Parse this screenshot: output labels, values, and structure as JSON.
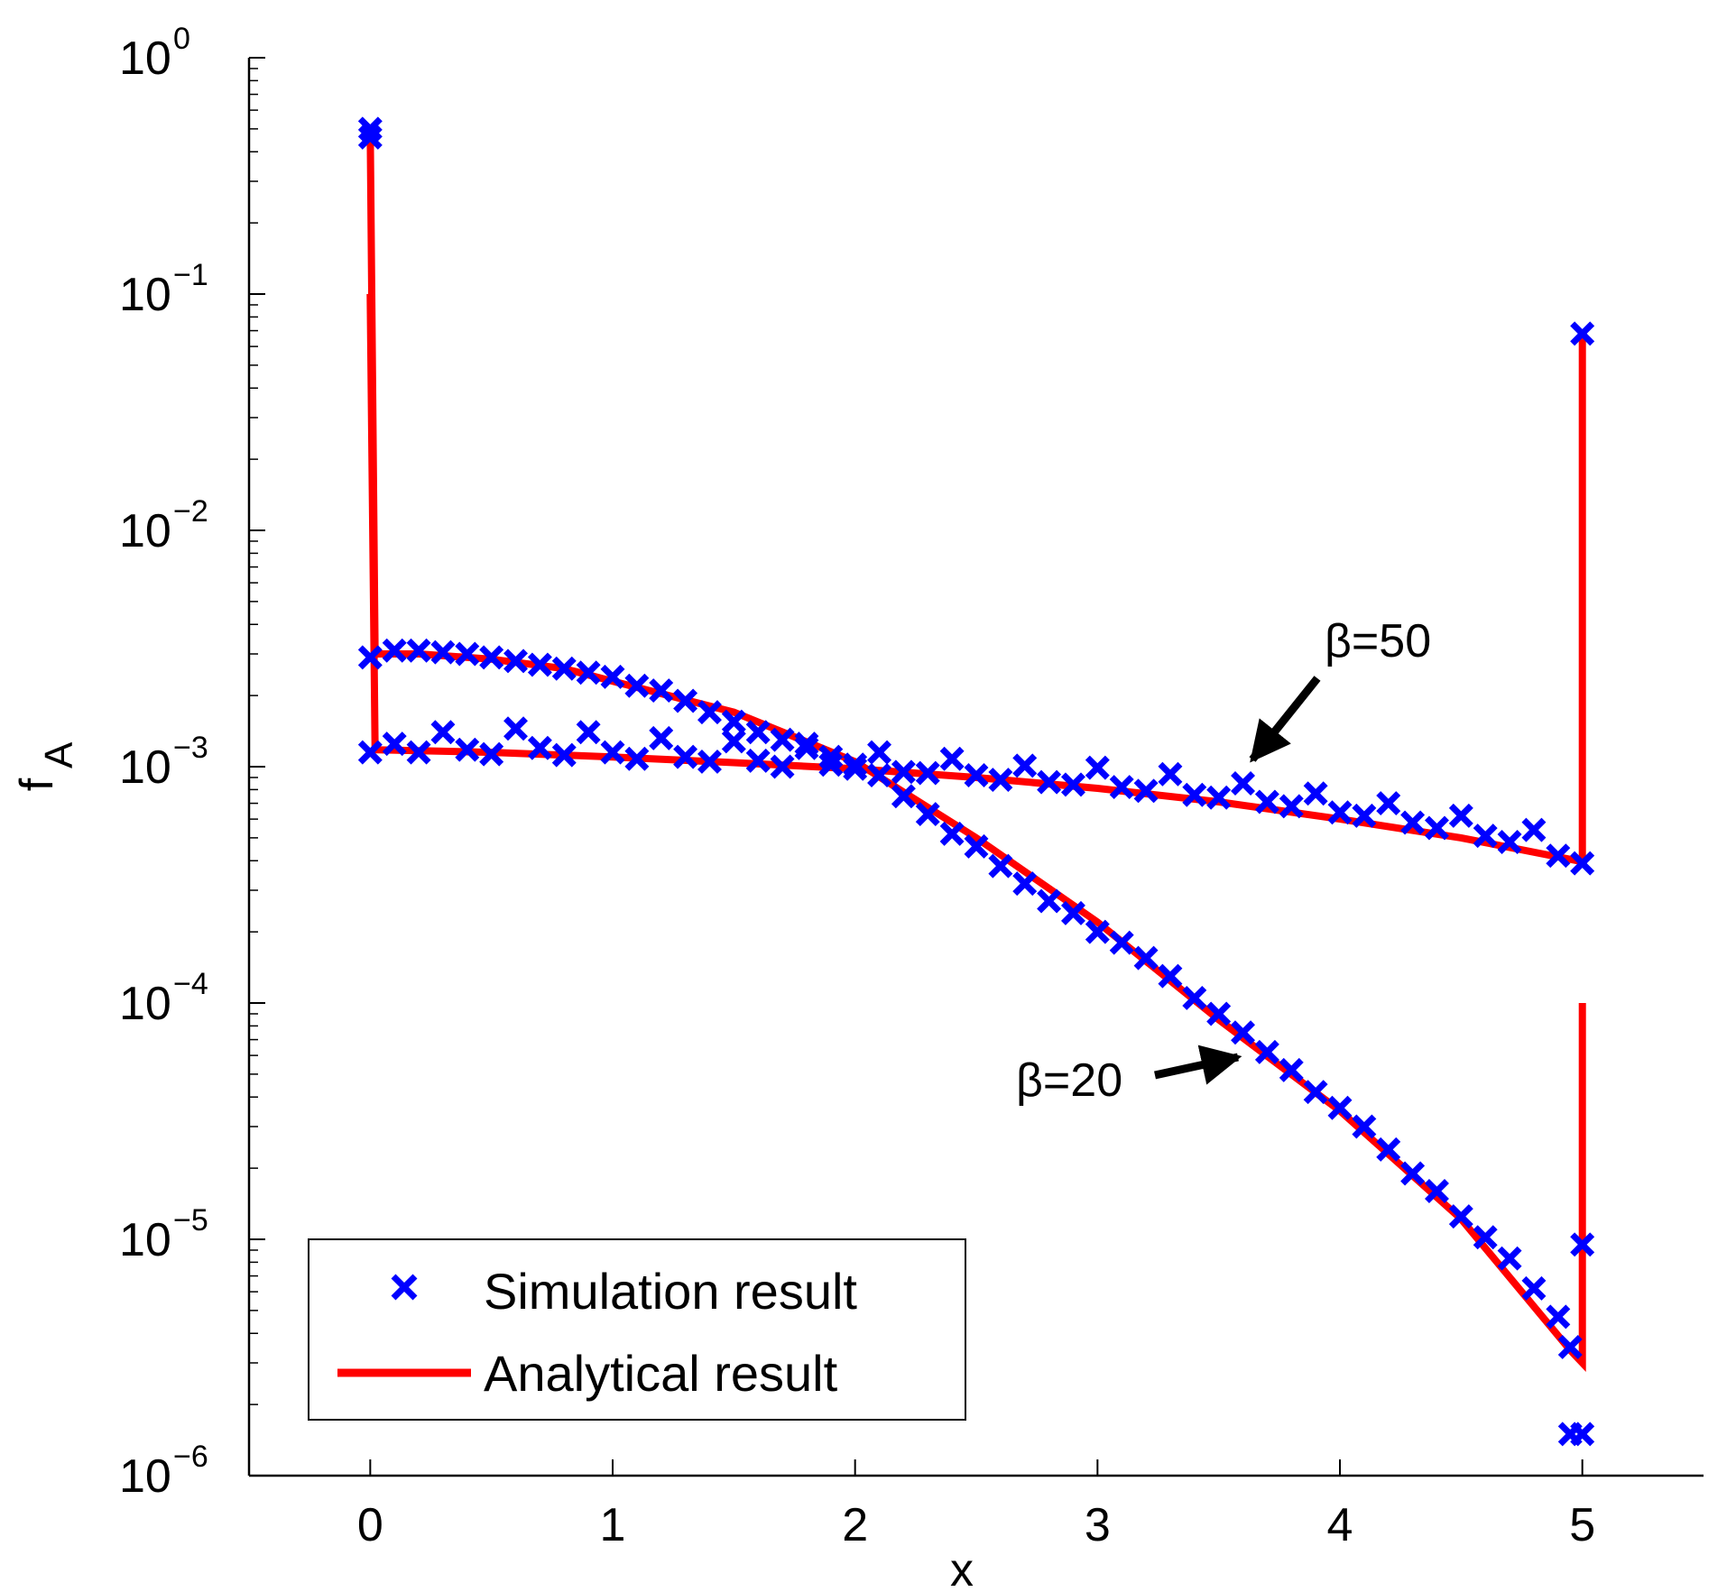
{
  "chart_data": {
    "type": "scatter",
    "title": "",
    "xlabel": "x",
    "ylabel": "f",
    "ylabel_subscript": "A",
    "xscale": "linear",
    "yscale": "log",
    "xlim": [
      -0.5,
      5.5
    ],
    "ylim": [
      1e-06,
      1
    ],
    "xticks": [
      {
        "value": 0,
        "label": "0"
      },
      {
        "value": 1,
        "label": "1"
      },
      {
        "value": 2,
        "label": "2"
      },
      {
        "value": 3,
        "label": "3"
      },
      {
        "value": 4,
        "label": "4"
      },
      {
        "value": 5,
        "label": "5"
      }
    ],
    "yticks": [
      {
        "value": 1e-06,
        "base": "10",
        "exp": "−6"
      },
      {
        "value": 1e-05,
        "base": "10",
        "exp": "−5"
      },
      {
        "value": 0.0001,
        "base": "10",
        "exp": "−4"
      },
      {
        "value": 0.001,
        "base": "10",
        "exp": "−3"
      },
      {
        "value": 0.01,
        "base": "10",
        "exp": "−2"
      },
      {
        "value": 0.1,
        "base": "10",
        "exp": "−1"
      },
      {
        "value": 1,
        "base": "10",
        "exp": "0"
      }
    ],
    "grid": false,
    "legend_position": "bottom-left",
    "legend": [
      {
        "label": "Simulation result",
        "style": "marker-x",
        "color": "#0000ff"
      },
      {
        "label": "Analytical result",
        "style": "line",
        "color": "#ff0000"
      }
    ],
    "series": [
      {
        "name": "Analytical result (β=20)",
        "kind": "line",
        "color": "#ff0000",
        "x": [
          0,
          0.02,
          0.2,
          0.5,
          0.8,
          1.0,
          1.5,
          2.0,
          2.5,
          3.0,
          3.5,
          4.0,
          4.5,
          4.95,
          5.0,
          5.0
        ],
        "y": [
          0.5,
          0.003,
          0.003,
          0.00285,
          0.0026,
          0.0023,
          0.0017,
          0.00105,
          0.0005,
          0.00022,
          8.5e-05,
          3.5e-05,
          1.22e-05,
          3.4e-06,
          3e-06,
          0.0001
        ]
      },
      {
        "name": "Analytical result (β=50)",
        "kind": "line",
        "color": "#ff0000",
        "x": [
          0,
          0.02,
          0.5,
          1.0,
          1.5,
          2.0,
          2.5,
          3.0,
          3.5,
          4.0,
          4.5,
          4.98,
          5.0,
          5.0
        ],
        "y": [
          0.1,
          0.00118,
          0.00115,
          0.0011,
          0.00104,
          0.00098,
          0.0009,
          0.00081,
          0.00071,
          0.0006,
          0.0005,
          0.0004,
          0.0004,
          0.068
        ]
      },
      {
        "name": "Simulation result (β=20)",
        "kind": "scatter",
        "marker": "x",
        "color": "#0000ff",
        "x": [
          0,
          0,
          0.1,
          0.2,
          0.3,
          0.4,
          0.5,
          0.6,
          0.7,
          0.8,
          0.9,
          1.0,
          1.1,
          1.2,
          1.3,
          1.4,
          1.5,
          1.6,
          1.7,
          1.8,
          1.9,
          2.0,
          2.1,
          2.2,
          2.3,
          2.4,
          2.5,
          2.6,
          2.7,
          2.8,
          2.9,
          3.0,
          3.1,
          3.2,
          3.3,
          3.4,
          3.5,
          3.6,
          3.7,
          3.8,
          3.9,
          4.0,
          4.1,
          4.2,
          4.3,
          4.4,
          4.5,
          4.6,
          4.7,
          4.8,
          4.9,
          4.95,
          4.95,
          5.0,
          5.0
        ],
        "y": [
          0.5,
          0.0029,
          0.0031,
          0.0031,
          0.00305,
          0.003,
          0.0029,
          0.0028,
          0.0027,
          0.0026,
          0.0025,
          0.0024,
          0.0022,
          0.0021,
          0.0019,
          0.0017,
          0.00155,
          0.0014,
          0.0013,
          0.00125,
          0.0011,
          0.00102,
          0.00092,
          0.00075,
          0.00063,
          0.00052,
          0.00046,
          0.00038,
          0.00032,
          0.00027,
          0.00024,
          0.0002,
          0.00018,
          0.000155,
          0.00013,
          0.000105,
          9e-05,
          7.5e-05,
          6.2e-05,
          5.2e-05,
          4.2e-05,
          3.6e-05,
          3e-05,
          2.4e-05,
          1.9e-05,
          1.6e-05,
          1.25e-05,
          1.02e-05,
          8.3e-06,
          6.2e-06,
          4.7e-06,
          3.5e-06,
          1.5e-06,
          1.5e-06,
          9.5e-06
        ]
      },
      {
        "name": "Simulation result (β=50)",
        "kind": "scatter",
        "marker": "x",
        "color": "#0000ff",
        "x": [
          0,
          0,
          0.1,
          0.2,
          0.3,
          0.4,
          0.5,
          0.6,
          0.7,
          0.8,
          0.9,
          1.0,
          1.1,
          1.2,
          1.3,
          1.4,
          1.5,
          1.6,
          1.7,
          1.8,
          1.9,
          2.0,
          2.1,
          2.2,
          2.3,
          2.4,
          2.5,
          2.6,
          2.7,
          2.8,
          2.9,
          3.0,
          3.1,
          3.2,
          3.3,
          3.4,
          3.5,
          3.6,
          3.7,
          3.8,
          3.9,
          4.0,
          4.1,
          4.2,
          4.3,
          4.4,
          4.5,
          4.6,
          4.7,
          4.8,
          4.9,
          5.0,
          5.0
        ],
        "y": [
          0.46,
          0.00115,
          0.00125,
          0.00115,
          0.0014,
          0.00118,
          0.00113,
          0.00145,
          0.0012,
          0.00112,
          0.0014,
          0.00115,
          0.00108,
          0.00132,
          0.0011,
          0.00105,
          0.00128,
          0.00106,
          0.001,
          0.0012,
          0.00102,
          0.00098,
          0.00115,
          0.00095,
          0.00094,
          0.00108,
          0.00092,
          0.00088,
          0.00101,
          0.00086,
          0.00084,
          0.00099,
          0.00082,
          0.00079,
          0.00093,
          0.00076,
          0.00074,
          0.00085,
          0.00071,
          0.00068,
          0.00077,
          0.00064,
          0.00062,
          0.0007,
          0.00058,
          0.00055,
          0.00062,
          0.00051,
          0.00048,
          0.00054,
          0.00042,
          0.00039,
          0.068
        ]
      }
    ],
    "annotations": [
      {
        "text": "β=50",
        "points_to": {
          "x": 3.6,
          "y": 0.0009
        }
      },
      {
        "text": "β=20",
        "points_to": {
          "x": 3.55,
          "y": 6.5e-05
        }
      }
    ]
  }
}
